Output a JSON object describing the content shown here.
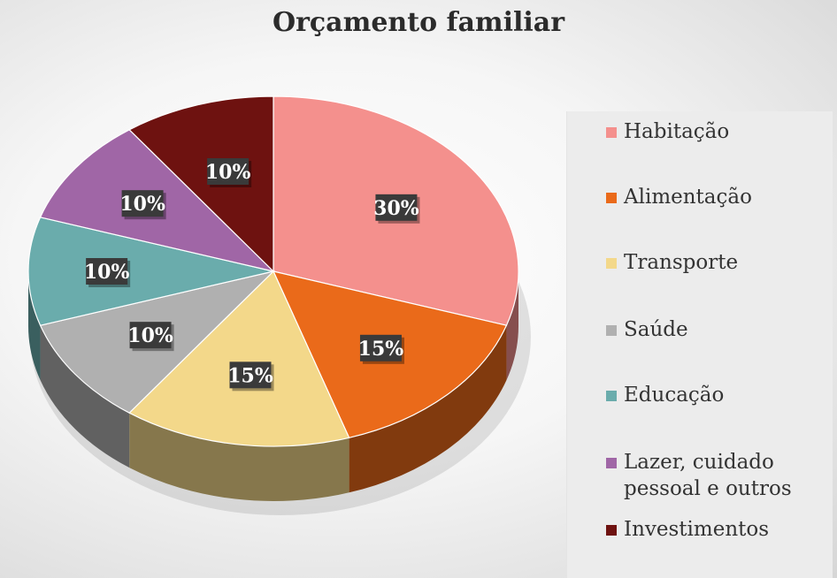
{
  "chart_data": {
    "type": "pie",
    "title": "Orçamento familiar",
    "categories": [
      "Habitação",
      "Alimentação",
      "Transporte",
      "Saúde",
      "Educação",
      "Lazer, cuidado pessoal e outros",
      "Investimentos"
    ],
    "values": [
      30,
      15,
      15,
      10,
      10,
      10,
      10
    ],
    "data_labels": [
      "30%",
      "15%",
      "15%",
      "10%",
      "10%",
      "10%",
      "10%"
    ],
    "colors": [
      "#f4908d",
      "#ea6a1a",
      "#f3d88a",
      "#b0b0b0",
      "#6aacac",
      "#a066a6",
      "#6e1210"
    ],
    "legend_position": "right",
    "style": "3d"
  }
}
